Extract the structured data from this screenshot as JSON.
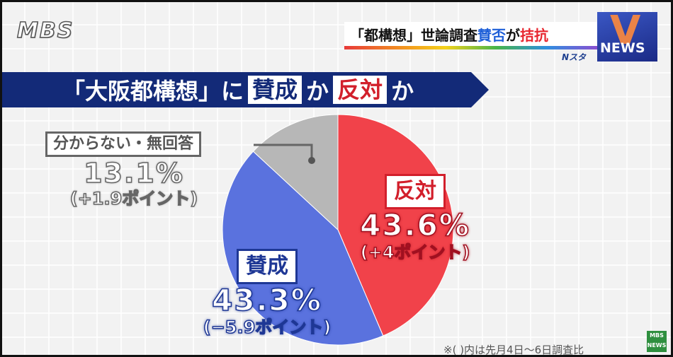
{
  "logo": {
    "text": "MBS"
  },
  "topic": {
    "part1": "「都構想」世論調査 ",
    "part2": "賛否",
    "part3": "が",
    "part4": "拮抗"
  },
  "news_box": {
    "text": "NEWS"
  },
  "program": {
    "text": "Nスタ"
  },
  "title": {
    "part1": "「大阪都構想」に",
    "for": "賛成",
    "mid": "か",
    "against": "反対",
    "end": "か"
  },
  "chart_data": {
    "type": "pie",
    "title": "「大阪都構想」に賛成か反対か",
    "slices": [
      {
        "name": "反対",
        "value": 43.6,
        "label": "43.6%",
        "change": "(+4ポイント)",
        "color": "#f1424a"
      },
      {
        "name": "賛成",
        "value": 43.3,
        "label": "43.3%",
        "change": "(−5.9ポイント)",
        "color": "#5a72de"
      },
      {
        "name": "分からない・無回答",
        "value": 13.1,
        "label": "13.1%",
        "change": "(+1.9ポイント)",
        "color": "#b7b7b7"
      }
    ]
  },
  "footnote": "※( )内は先月4日〜6日調査比",
  "mini_logo": {
    "line1": "MBS",
    "line2": "NEWS"
  }
}
